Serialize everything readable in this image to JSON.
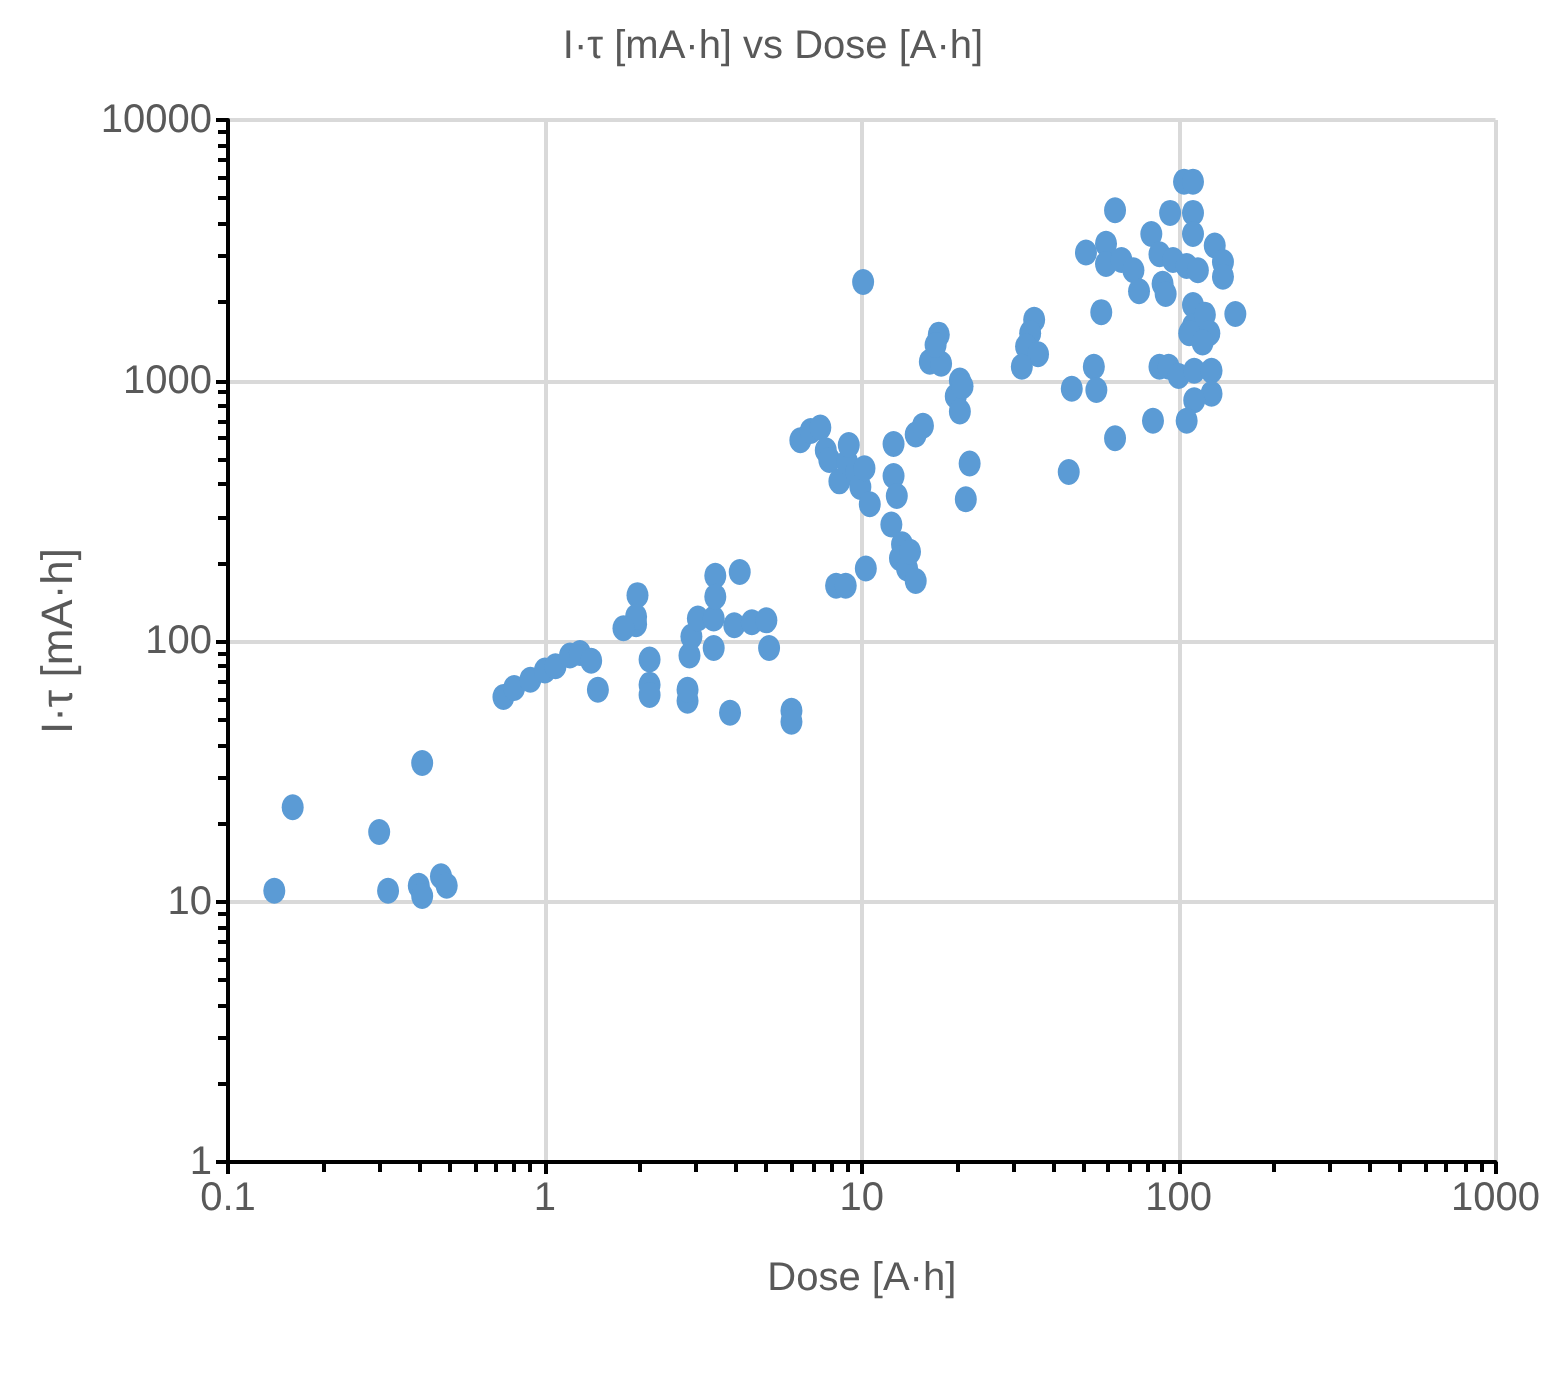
{
  "chart_data": {
    "type": "scatter",
    "title": "I·τ [mA·h] vs Dose [A·h]",
    "xlabel": "Dose [A·h]",
    "ylabel": "I·τ [mA·h]",
    "log": "xy",
    "grid": true,
    "marker": "circle",
    "xlim": [
      0.1,
      1000
    ],
    "ylim": [
      1,
      10000
    ],
    "xticks": [
      0.1,
      1,
      10,
      100,
      1000
    ],
    "yticks": [
      1,
      10,
      100,
      1000,
      10000
    ],
    "series": [
      {
        "color": "#5b9bd5",
        "x": [
          0.14,
          0.16,
          0.3,
          0.32,
          0.41,
          0.4,
          0.41,
          0.47,
          0.49,
          0.74,
          0.8,
          0.9,
          1.0,
          1.08,
          1.2,
          1.29,
          1.4,
          1.47,
          1.94,
          1.96,
          1.94,
          1.77,
          2.14,
          2.14,
          2.14,
          2.82,
          2.82,
          2.86,
          2.9,
          3.04,
          3.41,
          3.41,
          3.45,
          3.45,
          3.84,
          4.12,
          3.96,
          4.5,
          5.0,
          5.1,
          6.0,
          6.0,
          6.4,
          6.9,
          7.4,
          7.7,
          7.9,
          8.5,
          9.0,
          9.1,
          9.6,
          9.9,
          10.2,
          10.6,
          8.3,
          8.9,
          10.1,
          10.3,
          12.4,
          12.6,
          12.6,
          12.9,
          13.4,
          13.2,
          13.9,
          14.2,
          14.8,
          15.6,
          14.8,
          16.4,
          17.5,
          17.8,
          17.1,
          20.4,
          19.8,
          20.8,
          20.4,
          21.3,
          21.9,
          51,
          63,
          59,
          59,
          66,
          72,
          75,
          57,
          82,
          94,
          104,
          111,
          111,
          111,
          87,
          96,
          89,
          91,
          106,
          115,
          130,
          138,
          138,
          111,
          111,
          121,
          125,
          151,
          108,
          35,
          34,
          33,
          36,
          32,
          54,
          55,
          46,
          87,
          93,
          100,
          112,
          127,
          127,
          112,
          83,
          106,
          63,
          45,
          119
        ],
        "values": [
          11,
          23,
          18.5,
          11,
          34,
          11.5,
          10.5,
          12.5,
          11.5,
          61,
          66,
          71,
          77,
          80,
          88,
          90,
          84,
          65,
          116,
          150,
          124,
          112,
          85,
          68,
          62,
          59,
          65,
          88,
          104,
          122,
          94,
          122,
          178,
          148,
          53,
          184,
          115,
          118,
          120,
          94,
          54,
          49,
          590,
          640,
          660,
          540,
          495,
          410,
          485,
          565,
          445,
          390,
          460,
          335,
          163,
          163,
          2390,
          190,
          280,
          430,
          570,
          360,
          235,
          208,
          190,
          220,
          620,
          670,
          170,
          1180,
          1500,
          1160,
          1370,
          1000,
          870,
          950,
          760,
          350,
          480,
          3100,
          4500,
          3350,
          2800,
          2900,
          2650,
          2200,
          1830,
          3650,
          4400,
          5800,
          5800,
          4400,
          3650,
          3050,
          2900,
          2350,
          2150,
          2750,
          2650,
          3300,
          2850,
          2500,
          1950,
          1620,
          1790,
          1520,
          1800,
          1520,
          1710,
          1520,
          1350,
          1260,
          1130,
          1130,
          920,
          930,
          1130,
          1130,
          1040,
          1090,
          1090,
          890,
          840,
          700,
          700,
          600,
          445,
          1400
        ]
      }
    ]
  }
}
